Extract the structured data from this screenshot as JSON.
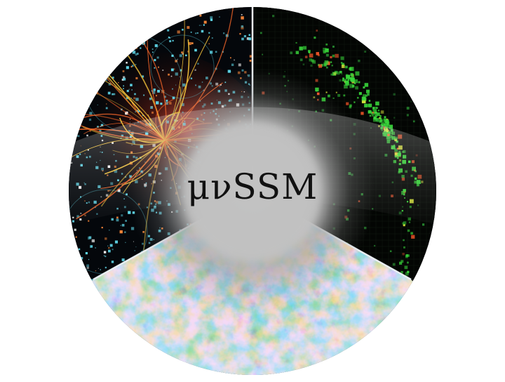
{
  "logo": {
    "title": "μνSSM",
    "panels": [
      "collider-event",
      "neutrino-detector",
      "cosmic-microwave-background"
    ]
  },
  "colors": {
    "background": "#ffffff",
    "panel_dark": "#05070a",
    "center_glow": "#bdbdbd",
    "divider": "#e9eef2",
    "cmb_base": "#7cb7e0",
    "cmb_warm": "#e8a34a",
    "event_tracks": "#f2c23a",
    "event_hits": "#5fd6e8",
    "detector_green": "#38d43a"
  }
}
